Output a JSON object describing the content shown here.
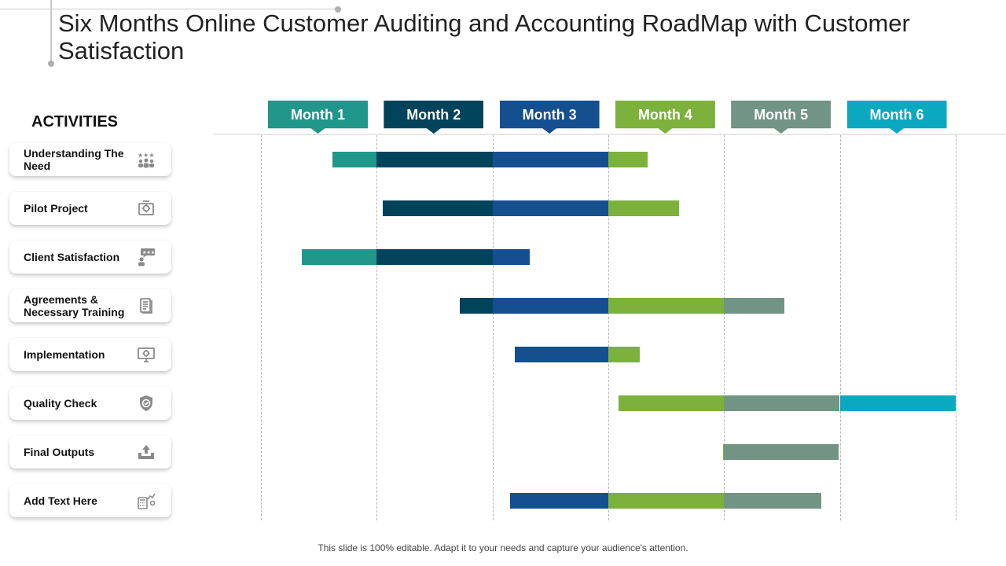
{
  "title": "Six Months Online Customer Auditing and Accounting RoadMap with Customer Satisfaction",
  "activities_heading": "ACTIVITIES",
  "footer": "This slide is 100% editable. Adapt it to your needs and capture your audience's attention.",
  "activities": [
    {
      "label": "Understanding The Need",
      "icon": "people-rating-icon"
    },
    {
      "label": "Pilot Project",
      "icon": "project-gear-icon"
    },
    {
      "label": "Client Satisfaction",
      "icon": "feedback-user-icon"
    },
    {
      "label": "Agreements & Necessary Training",
      "icon": "document-icon"
    },
    {
      "label": "Implementation",
      "icon": "monitor-gear-icon"
    },
    {
      "label": "Quality Check",
      "icon": "shield-check-icon"
    },
    {
      "label": "Final Outputs",
      "icon": "upload-tray-icon"
    },
    {
      "label": "Add Text Here",
      "icon": "calculator-chart-icon"
    }
  ],
  "chart_data": {
    "type": "gantt",
    "title": "Six Months Online Customer Auditing and Accounting RoadMap with Customer Satisfaction",
    "months": [
      {
        "label": "Month 1",
        "color": "#21968b"
      },
      {
        "label": "Month 2",
        "color": "#02435c"
      },
      {
        "label": "Month 3",
        "color": "#144f8f"
      },
      {
        "label": "Month 4",
        "color": "#7cb13c"
      },
      {
        "label": "Month 5",
        "color": "#729484"
      },
      {
        "label": "Month 6",
        "color": "#0aa9c0"
      }
    ],
    "x_unit": "months",
    "xlim": [
      0,
      6
    ],
    "tasks": [
      {
        "activity": "Understanding The Need",
        "start": 0.62,
        "end": 3.34
      },
      {
        "activity": "Pilot Project",
        "start": 1.05,
        "end": 3.61
      },
      {
        "activity": "Client Satisfaction",
        "start": 0.35,
        "end": 2.32
      },
      {
        "activity": "Agreements & Necessary Training",
        "start": 1.72,
        "end": 4.52
      },
      {
        "activity": "Implementation",
        "start": 2.19,
        "end": 3.27
      },
      {
        "activity": "Quality Check",
        "start": 3.09,
        "end": 6.0
      },
      {
        "activity": "Final Outputs",
        "start": 3.99,
        "end": 4.99
      },
      {
        "activity": "Add Text Here",
        "start": 2.15,
        "end": 4.84
      }
    ]
  }
}
